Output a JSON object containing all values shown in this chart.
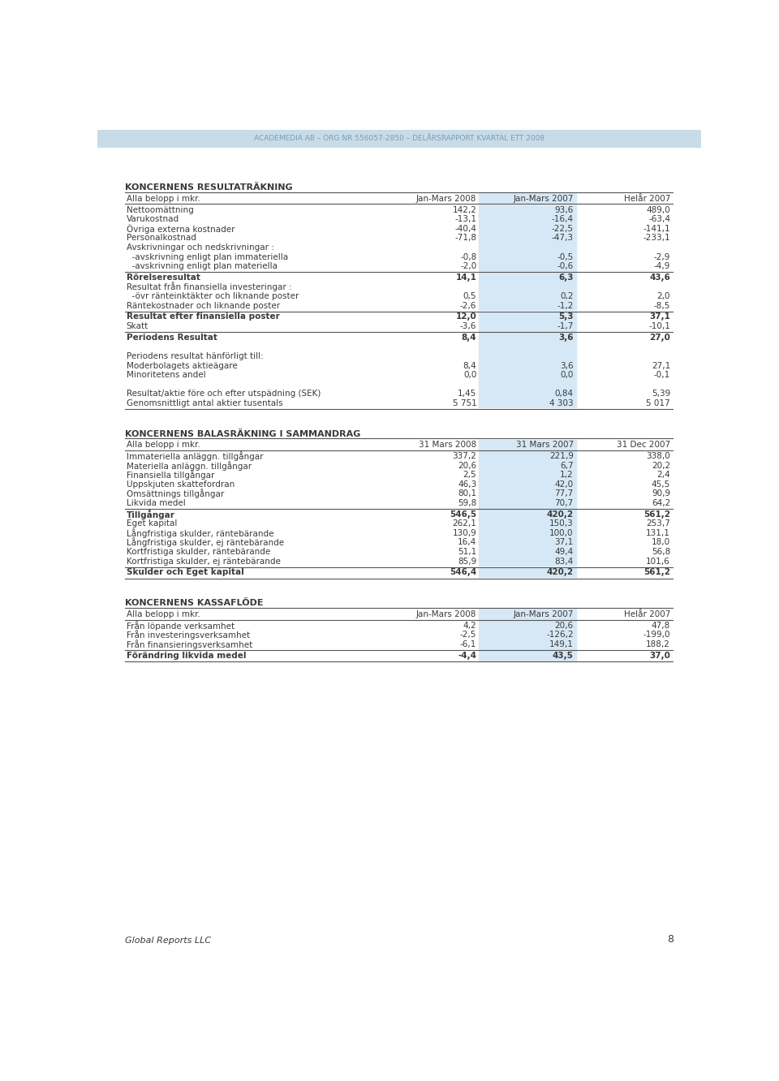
{
  "header_text": "ACADEMEDIA AB – ORG NR 556057-2850 – DELÅRSRAPPORT KVARTAL ETT 2008",
  "header_bg": "#c8dce8",
  "header_text_color": "#7a9db5",
  "page_bg": "#ffffff",
  "text_color": "#3a3a3a",
  "highlight_col_bg": "#d6e8f5",
  "section1_title": "KONCERNENS RESULTATRÄKNING",
  "section1_header": [
    "Alla belopp i mkr.",
    "Jan-Mars 2008",
    "Jan-Mars 2007",
    "Helår 2007"
  ],
  "section1_rows": [
    {
      "label": "Nettoomättning",
      "v1": "142,2",
      "v2": "93,6",
      "v3": "489,0",
      "bold": false
    },
    {
      "label": "Varukostnad",
      "v1": "-13,1",
      "v2": "-16,4",
      "v3": "-63,4",
      "bold": false
    },
    {
      "label": "Övriga externa kostnader",
      "v1": "-40,4",
      "v2": "-22,5",
      "v3": "-141,1",
      "bold": false
    },
    {
      "label": "Personalkostnad",
      "v1": "-71,8",
      "v2": "-47,3",
      "v3": "-233,1",
      "bold": false
    },
    {
      "label": "Avskrivningar och nedskrivningar :",
      "v1": "",
      "v2": "",
      "v3": "",
      "bold": false
    },
    {
      "label": "  -avskrivning enligt plan immateriella",
      "v1": "-0,8",
      "v2": "-0,5",
      "v3": "-2,9",
      "bold": false
    },
    {
      "label": "  -avskrivning enligt plan materiella",
      "v1": "-2,0",
      "v2": "-0,6",
      "v3": "-4,9",
      "bold": false
    },
    {
      "label": "Rörelseresultat",
      "v1": "14,1",
      "v2": "6,3",
      "v3": "43,6",
      "bold": true,
      "line_above": true
    },
    {
      "label": "Resultat från finansiella investeringar :",
      "v1": "",
      "v2": "",
      "v3": "",
      "bold": false
    },
    {
      "label": "  -övr ränteinktäkter och liknande poster",
      "v1": "0,5",
      "v2": "0,2",
      "v3": "2,0",
      "bold": false
    },
    {
      "label": "Räntekostnader och liknande poster",
      "v1": "-2,6",
      "v2": "-1,2",
      "v3": "-8,5",
      "bold": false
    },
    {
      "label": "Resultat efter finansiella poster",
      "v1": "12,0",
      "v2": "5,3",
      "v3": "37,1",
      "bold": true,
      "line_above": true
    },
    {
      "label": "Skatt",
      "v1": "-3,6",
      "v2": "-1,7",
      "v3": "-10,1",
      "bold": false
    },
    {
      "label": "Periodens Resultat",
      "v1": "8,4",
      "v2": "3,6",
      "v3": "27,0",
      "bold": true,
      "line_above": true
    },
    {
      "label": "",
      "v1": "",
      "v2": "",
      "v3": "",
      "bold": false
    },
    {
      "label": "Periodens resultat hänförligt till:",
      "v1": "",
      "v2": "",
      "v3": "",
      "bold": false
    },
    {
      "label": "Moderbolagets aktieägare",
      "v1": "8,4",
      "v2": "3,6",
      "v3": "27,1",
      "bold": false
    },
    {
      "label": "Minoritetens andel",
      "v1": "0,0",
      "v2": "0,0",
      "v3": "-0,1",
      "bold": false
    },
    {
      "label": "",
      "v1": "",
      "v2": "",
      "v3": "",
      "bold": false
    },
    {
      "label": "Resultat/aktie före och efter utspädning (SEK)",
      "v1": "1,45",
      "v2": "0,84",
      "v3": "5,39",
      "bold": false
    },
    {
      "label": "Genomsnittligt antal aktier tusentals",
      "v1": "5 751",
      "v2": "4 303",
      "v3": "5 017",
      "bold": false
    }
  ],
  "section2_title": "KONCERNENS BALASRÄKNING I SAMMANDRAG",
  "section2_header": [
    "Alla belopp i mkr.",
    "31 Mars 2008",
    "31 Mars 2007",
    "31 Dec 2007"
  ],
  "section2_rows": [
    {
      "label": "Immateriella anläggn. tillgångar",
      "v1": "337,2",
      "v2": "221,9",
      "v3": "338,0",
      "bold": false
    },
    {
      "label": "Materiella anläggn. tillgångar",
      "v1": "20,6",
      "v2": "6,7",
      "v3": "20,2",
      "bold": false
    },
    {
      "label": "Finansiella tillgångar",
      "v1": "2,5",
      "v2": "1,2",
      "v3": "2,4",
      "bold": false
    },
    {
      "label": "Uppskjuten skattefordran",
      "v1": "46,3",
      "v2": "42,0",
      "v3": "45,5",
      "bold": false
    },
    {
      "label": "Omsättnings tillgångar",
      "v1": "80,1",
      "v2": "77,7",
      "v3": "90,9",
      "bold": false
    },
    {
      "label": "Likvida medel",
      "v1": "59,8",
      "v2": "70,7",
      "v3": "64,2",
      "bold": false
    },
    {
      "label": "Tillgångar",
      "v1": "546,5",
      "v2": "420,2",
      "v3": "561,2",
      "bold": true,
      "line_above": true
    },
    {
      "label": "Eget kapital",
      "v1": "262,1",
      "v2": "150,3",
      "v3": "253,7",
      "bold": false
    },
    {
      "label": "Långfristiga skulder, räntebärande",
      "v1": "130,9",
      "v2": "100,0",
      "v3": "131,1",
      "bold": false
    },
    {
      "label": "Långfristiga skulder, ej räntebärande",
      "v1": "16,4",
      "v2": "37,1",
      "v3": "18,0",
      "bold": false
    },
    {
      "label": "Kortfristiga skulder, räntebärande",
      "v1": "51,1",
      "v2": "49,4",
      "v3": "56,8",
      "bold": false
    },
    {
      "label": "Kortfristiga skulder, ej räntebärande",
      "v1": "85,9",
      "v2": "83,4",
      "v3": "101,6",
      "bold": false
    },
    {
      "label": "Skulder och Eget kapital",
      "v1": "546,4",
      "v2": "420,2",
      "v3": "561,2",
      "bold": true,
      "line_above": true
    }
  ],
  "section3_title": "KONCERNENS KASSAFLÖDE",
  "section3_header": [
    "Alla belopp i mkr.",
    "Jan-Mars 2008",
    "Jan-Mars 2007",
    "Helår 2007"
  ],
  "section3_rows": [
    {
      "label": "Från löpande verksamhet",
      "v1": "4,2",
      "v2": "20,6",
      "v3": "47,8",
      "bold": false
    },
    {
      "label": "Från investeringsverksamhet",
      "v1": "-2,5",
      "v2": "-126,2",
      "v3": "-199,0",
      "bold": false
    },
    {
      "label": "Från finansieringsverksamhet",
      "v1": "-6,1",
      "v2": "149,1",
      "v3": "188,2",
      "bold": false
    },
    {
      "label": "Förändring likvida medel",
      "v1": "-4,4",
      "v2": "43,5",
      "v3": "37,0",
      "bold": true,
      "line_above": true
    }
  ],
  "footer_text": "Global Reports LLC",
  "page_number": "8"
}
